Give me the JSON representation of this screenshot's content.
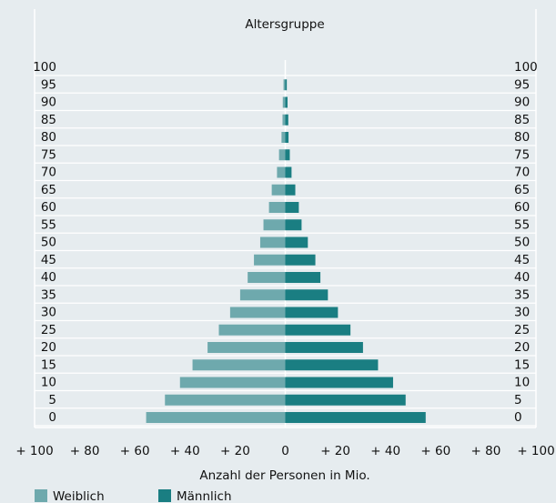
{
  "chart_data": {
    "type": "pyramid",
    "title": "Altersgruppe",
    "xlabel": "Anzahl der Personen in Mio.",
    "y": [
      0,
      5,
      10,
      15,
      20,
      25,
      30,
      35,
      40,
      45,
      50,
      55,
      60,
      65,
      70,
      75,
      80,
      85,
      90,
      95
    ],
    "series": [
      {
        "name": "Weiblich",
        "color": "#6ea9ad",
        "side": "left",
        "values": [
          55.5,
          48,
          42,
          37,
          31,
          26.5,
          22,
          18,
          15,
          12.5,
          10,
          8.7,
          6.5,
          5.4,
          3.3,
          2.5,
          1.5,
          1.1,
          1,
          0.7
        ]
      },
      {
        "name": "Männlich",
        "color": "#1a7e82",
        "side": "right",
        "values": [
          56,
          48,
          43,
          37,
          31,
          26,
          21,
          17,
          14,
          12,
          9,
          6.5,
          5.4,
          4,
          2.5,
          1.8,
          1.3,
          1.2,
          0.9,
          0.6
        ]
      }
    ],
    "xlim": [
      -100,
      100
    ],
    "xticks": [
      {
        "value": -100,
        "label": "+ 100"
      },
      {
        "value": -80,
        "label": "+ 80"
      },
      {
        "value": -60,
        "label": "+ 60"
      },
      {
        "value": -40,
        "label": "+ 40"
      },
      {
        "value": -20,
        "label": "+ 20"
      },
      0,
      {
        "value": 20,
        "label": "+ 20"
      },
      {
        "value": 40,
        "label": "+ 40"
      },
      {
        "value": 60,
        "label": "+ 60"
      },
      {
        "value": 80,
        "label": "+ 80"
      },
      {
        "value": 100,
        "label": "+ 100"
      }
    ],
    "ylim": [
      0,
      100
    ],
    "yticks": [
      0,
      5,
      10,
      15,
      20,
      25,
      30,
      35,
      40,
      45,
      50,
      55,
      60,
      65,
      70,
      75,
      80,
      85,
      90,
      95,
      100
    ]
  }
}
